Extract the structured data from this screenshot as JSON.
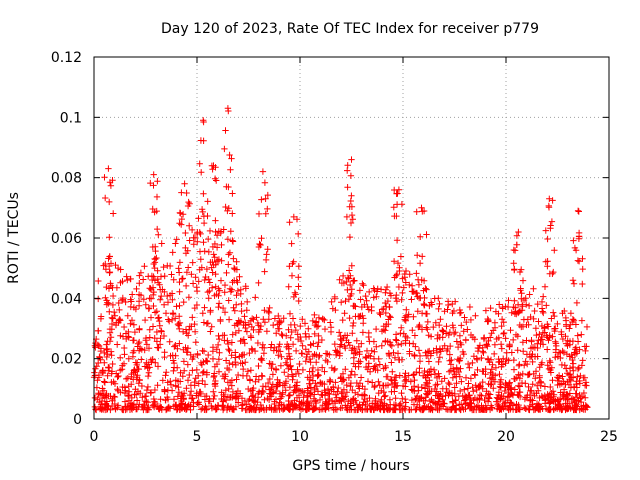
{
  "chart_data": {
    "type": "scatter",
    "title": "Day 120 of 2023, Rate Of TEC Index for receiver p779",
    "xlabel": "GPS time / hours",
    "ylabel": "ROTI / TECUs",
    "xlim": [
      0,
      25
    ],
    "ylim": [
      0,
      0.12
    ],
    "xticks": [
      0,
      5,
      10,
      15,
      20,
      25
    ],
    "xtick_labels": [
      "0",
      "5",
      "10",
      "15",
      "20",
      "25"
    ],
    "yticks": [
      0,
      0.02,
      0.04,
      0.06,
      0.08,
      0.1,
      0.12
    ],
    "ytick_labels": [
      "0",
      "0.02",
      "0.04",
      "0.06",
      "0.08",
      "0.1",
      "0.12"
    ],
    "grid": true,
    "marker": "+",
    "series": [
      {
        "name": "ROTI",
        "color": "#ff0000",
        "envelope": {
          "x": [
            0,
            1,
            2,
            3,
            4,
            5,
            6,
            7,
            8,
            9,
            10,
            11,
            12,
            13,
            14,
            15,
            16,
            17,
            18,
            19,
            20,
            21,
            22,
            23,
            24
          ],
          "y_high": [
            0.05,
            0.052,
            0.048,
            0.058,
            0.06,
            0.065,
            0.068,
            0.052,
            0.04,
            0.036,
            0.034,
            0.035,
            0.048,
            0.045,
            0.045,
            0.05,
            0.046,
            0.04,
            0.038,
            0.036,
            0.04,
            0.045,
            0.04,
            0.036,
            0.034
          ]
        },
        "peaks": [
          {
            "x": 0.7,
            "y": 0.083
          },
          {
            "x": 2.9,
            "y": 0.081
          },
          {
            "x": 4.4,
            "y": 0.078
          },
          {
            "x": 5.3,
            "y": 0.099
          },
          {
            "x": 5.8,
            "y": 0.084
          },
          {
            "x": 6.5,
            "y": 0.103
          },
          {
            "x": 8.2,
            "y": 0.082
          },
          {
            "x": 9.7,
            "y": 0.067
          },
          {
            "x": 12.5,
            "y": 0.086
          },
          {
            "x": 14.8,
            "y": 0.076
          },
          {
            "x": 15.9,
            "y": 0.07
          },
          {
            "x": 20.6,
            "y": 0.062
          },
          {
            "x": 22.1,
            "y": 0.073
          },
          {
            "x": 23.5,
            "y": 0.069
          }
        ],
        "y_floor": 0.003
      }
    ]
  }
}
